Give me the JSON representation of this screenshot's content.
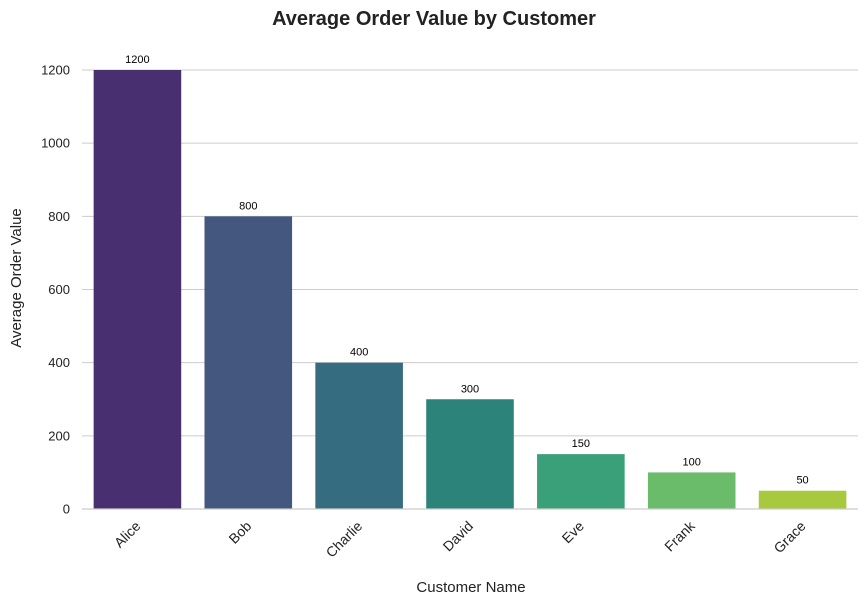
{
  "chart_data": {
    "type": "bar",
    "title": "Average Order Value by Customer",
    "xlabel": "Customer Name",
    "ylabel": "Average Order Value",
    "categories": [
      "Alice",
      "Bob",
      "Charlie",
      "David",
      "Eve",
      "Frank",
      "Grace"
    ],
    "values": [
      1200,
      800,
      400,
      300,
      150,
      100,
      50
    ],
    "data_labels": [
      "1200",
      "800",
      "400",
      "300",
      "150",
      "100",
      "50"
    ],
    "ylim": [
      0,
      1200
    ],
    "yticks": [
      0,
      200,
      400,
      600,
      800,
      1000,
      1200
    ],
    "ytick_labels": [
      "0",
      "200",
      "400",
      "600",
      "800",
      "1000",
      "1200"
    ],
    "grid": "horizontal",
    "colors": [
      "#482f6f",
      "#43577f",
      "#366c7f",
      "#2c837a",
      "#3aa07a",
      "#6bbc6a",
      "#a8c83d"
    ]
  }
}
